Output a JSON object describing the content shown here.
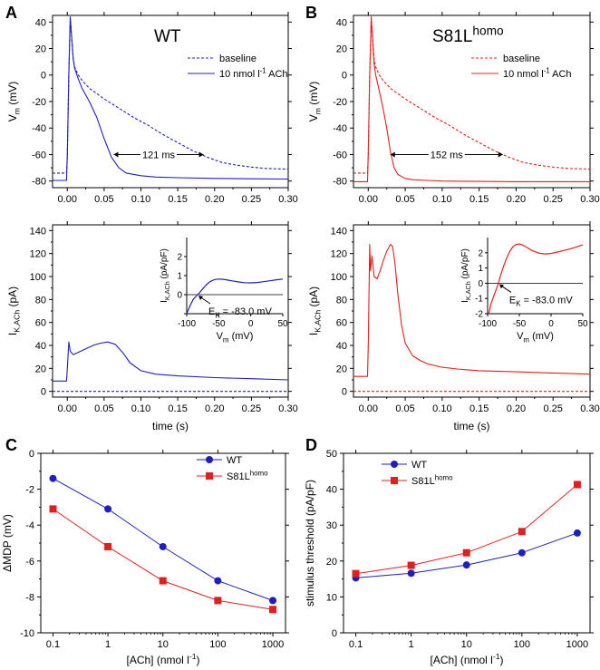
{
  "panels": [
    {
      "id": "A",
      "letter": "A",
      "title": "WT",
      "title_sup": "",
      "color": "#1f1fbf",
      "chart_data": {
        "type": "line",
        "xlim": [
          -0.02,
          0.3
        ],
        "ylim": [
          -85,
          45
        ],
        "xticks": [
          0.0,
          0.05,
          0.1,
          0.15,
          0.2,
          0.25,
          0.3
        ],
        "xtick_labels": [
          "0.00",
          "0.05",
          "0.10",
          "0.15",
          "0.20",
          "0.25",
          "0.30"
        ],
        "yticks": [
          -80,
          -60,
          -40,
          -20,
          0,
          20,
          40
        ],
        "ytick_labels": [
          "-80",
          "-60",
          "-40",
          "-20",
          "0",
          "20",
          "40"
        ],
        "ylabel_main": "V",
        "ylabel_sub": "m",
        "ylabel_unit": " (mV)",
        "series": [
          {
            "name": "baseline",
            "dashed": true,
            "x": [
              -0.02,
              -0.001,
              0.0,
              0.002,
              0.004,
              0.006,
              0.008,
              0.01,
              0.015,
              0.02,
              0.03,
              0.04,
              0.05,
              0.07,
              0.09,
              0.11,
              0.13,
              0.15,
              0.17,
              0.19,
              0.21,
              0.23,
              0.25,
              0.27,
              0.3
            ],
            "y": [
              -74,
              -74,
              -60,
              0,
              43,
              28,
              12,
              6,
              0,
              -4,
              -10,
              -14,
              -18,
              -25,
              -32,
              -38,
              -45,
              -51,
              -57,
              -62,
              -66,
              -68,
              -69.5,
              -70.5,
              -71
            ]
          },
          {
            "name": "10 nmol l",
            "dashed": false,
            "x": [
              -0.02,
              -0.001,
              0.0,
              0.002,
              0.004,
              0.006,
              0.008,
              0.01,
              0.015,
              0.02,
              0.03,
              0.04,
              0.05,
              0.06,
              0.07,
              0.08,
              0.1,
              0.12,
              0.15,
              0.2,
              0.25,
              0.3
            ],
            "y": [
              -79.5,
              -79.5,
              -60,
              0,
              44,
              28,
              12,
              5,
              -3,
              -10,
              -20,
              -32,
              -48,
              -62,
              -70,
              -74,
              -76,
              -77,
              -77.5,
              -78,
              -78.3,
              -78.5
            ]
          }
        ],
        "legend": [
          "baseline",
          "10 nmol l",
          "-1",
          " ACh"
        ],
        "annotation": "121 ms"
      }
    },
    {
      "id": "B",
      "letter": "B",
      "title": "S81L",
      "title_sup": "homo",
      "color": "#e02020",
      "chart_data": {
        "type": "line",
        "xlim": [
          -0.02,
          0.3
        ],
        "ylim": [
          -85,
          45
        ],
        "xticks": [
          0.0,
          0.05,
          0.1,
          0.15,
          0.2,
          0.25,
          0.3
        ],
        "xtick_labels": [
          "0.00",
          "0.05",
          "0.10",
          "0.15",
          "0.20",
          "0.25",
          "0.30"
        ],
        "yticks": [
          -80,
          -60,
          -40,
          -20,
          0,
          20,
          40
        ],
        "ytick_labels": [
          "-80",
          "-60",
          "-40",
          "-20",
          "0",
          "20",
          "40"
        ],
        "ylabel_main": "V",
        "ylabel_sub": "m",
        "ylabel_unit": " (mV)",
        "series": [
          {
            "name": "baseline",
            "dashed": true,
            "x": [
              -0.02,
              -0.001,
              0.0,
              0.002,
              0.004,
              0.006,
              0.008,
              0.01,
              0.015,
              0.02,
              0.03,
              0.04,
              0.05,
              0.07,
              0.09,
              0.11,
              0.13,
              0.15,
              0.17,
              0.19,
              0.21,
              0.23,
              0.25,
              0.27,
              0.3
            ],
            "y": [
              -74,
              -74,
              -60,
              0,
              43,
              28,
              12,
              6,
              0,
              -4,
              -10,
              -14,
              -18,
              -25,
              -32,
              -38,
              -45,
              -51,
              -57,
              -62,
              -66,
              -68,
              -69.5,
              -70.5,
              -71
            ]
          },
          {
            "name": "10 nmol l",
            "dashed": false,
            "x": [
              -0.02,
              -0.001,
              0.0,
              0.002,
              0.004,
              0.006,
              0.008,
              0.01,
              0.015,
              0.02,
              0.025,
              0.03,
              0.035,
              0.04,
              0.05,
              0.06,
              0.08,
              0.1,
              0.15,
              0.2,
              0.25,
              0.3
            ],
            "y": [
              -80.5,
              -80.5,
              -60,
              0,
              44,
              25,
              8,
              0,
              -12,
              -25,
              -40,
              -58,
              -70,
              -75,
              -78,
              -79,
              -79.5,
              -80,
              -80.3,
              -80.5,
              -80.5,
              -80.5
            ]
          }
        ],
        "legend": [
          "baseline",
          "10 nmol l",
          "-1",
          " ACh"
        ],
        "annotation": "152 ms"
      }
    },
    {
      "id": "A2",
      "color": "#1f1fbf",
      "chart_data": {
        "type": "line",
        "xlim": [
          -0.02,
          0.3
        ],
        "ylim": [
          -5,
          145
        ],
        "xticks": [
          0.0,
          0.05,
          0.1,
          0.15,
          0.2,
          0.25,
          0.3
        ],
        "xtick_labels": [
          "0.00",
          "0.05",
          "0.10",
          "0.15",
          "0.20",
          "0.25",
          "0.30"
        ],
        "yticks": [
          0,
          20,
          40,
          60,
          80,
          100,
          120,
          140
        ],
        "ytick_labels": [
          "0",
          "20",
          "40",
          "60",
          "80",
          "100",
          "120",
          "140"
        ],
        "xlabel": "time (s)",
        "ylabel_main": "I",
        "ylabel_sub": "K,ACh",
        "ylabel_unit": " (pA)",
        "series": [
          {
            "name": "baseline",
            "dashed": true,
            "x": [
              -0.02,
              0.3
            ],
            "y": [
              0,
              0
            ]
          },
          {
            "name": "ACh",
            "dashed": false,
            "x": [
              -0.02,
              -0.001,
              0.0,
              0.002,
              0.004,
              0.008,
              0.015,
              0.025,
              0.035,
              0.045,
              0.055,
              0.065,
              0.075,
              0.085,
              0.1,
              0.12,
              0.15,
              0.2,
              0.25,
              0.3
            ],
            "y": [
              9,
              9,
              20,
              43,
              35,
              32,
              34,
              37,
              40,
              42,
              43,
              41,
              34,
              25,
              18,
              15,
              13.5,
              12,
              11,
              10
            ]
          }
        ]
      },
      "inset": {
        "xlim": [
          -100,
          50
        ],
        "ylim": [
          -1,
          3
        ],
        "xticks": [
          -100,
          -50,
          0,
          50
        ],
        "xtick_labels": [
          "-100",
          "-50",
          "0",
          "50"
        ],
        "yticks": [
          -1,
          0,
          1,
          2
        ],
        "ytick_labels": [
          "",
          "0",
          "1",
          "2"
        ],
        "ylabel_main": "I",
        "ylabel_sub": "K,ACh",
        "ylabel_unit": " (pA/pF)",
        "xlabel_main": "V",
        "xlabel_sub": "m",
        "xlabel_unit": " (mV)",
        "ek_label": "E",
        "ek_sub": "K",
        "ek_value": " = -83.0 mV",
        "curve": {
          "x": [
            -100,
            -95,
            -90,
            -85,
            -83,
            -80,
            -75,
            -70,
            -65,
            -60,
            -55,
            -50,
            -45,
            -40,
            -30,
            -20,
            -10,
            0,
            10,
            20,
            30,
            40,
            50
          ],
          "y": [
            -1.0,
            -0.6,
            -0.25,
            -0.07,
            0,
            0.1,
            0.3,
            0.5,
            0.65,
            0.75,
            0.8,
            0.82,
            0.81,
            0.79,
            0.73,
            0.67,
            0.63,
            0.62,
            0.64,
            0.68,
            0.73,
            0.78,
            0.82
          ]
        }
      }
    },
    {
      "id": "B2",
      "color": "#e02020",
      "chart_data": {
        "type": "line",
        "xlim": [
          -0.02,
          0.3
        ],
        "ylim": [
          -5,
          145
        ],
        "xticks": [
          0.0,
          0.05,
          0.1,
          0.15,
          0.2,
          0.25,
          0.3
        ],
        "xtick_labels": [
          "0.00",
          "0.05",
          "0.10",
          "0.15",
          "0.20",
          "0.25",
          "0.30"
        ],
        "yticks": [
          0,
          20,
          40,
          60,
          80,
          100,
          120,
          140
        ],
        "ytick_labels": [
          "0",
          "20",
          "40",
          "60",
          "80",
          "100",
          "120",
          "140"
        ],
        "xlabel": "time (s)",
        "ylabel_main": "I",
        "ylabel_sub": "K,ACh",
        "ylabel_unit": " (pA)",
        "series": [
          {
            "name": "baseline",
            "dashed": true,
            "x": [
              -0.02,
              0.3
            ],
            "y": [
              0,
              0
            ]
          },
          {
            "name": "ACh",
            "dashed": false,
            "x": [
              -0.02,
              -0.001,
              0.0,
              0.002,
              0.003,
              0.005,
              0.008,
              0.012,
              0.016,
              0.02,
              0.025,
              0.03,
              0.033,
              0.036,
              0.04,
              0.045,
              0.05,
              0.06,
              0.07,
              0.08,
              0.1,
              0.12,
              0.15,
              0.2,
              0.25,
              0.3
            ],
            "y": [
              13,
              13,
              40,
              128,
              105,
              118,
              100,
              98,
              105,
              113,
              122,
              128,
              126,
              112,
              85,
              58,
              42,
              31,
              27,
              24,
              21,
              19.5,
              18,
              17,
              16,
              15
            ]
          }
        ]
      },
      "inset": {
        "xlim": [
          -100,
          50
        ],
        "ylim": [
          -2,
          3
        ],
        "xticks": [
          -100,
          -50,
          0,
          50
        ],
        "xtick_labels": [
          "-100",
          "-50",
          "0",
          "50"
        ],
        "yticks": [
          -2,
          -1,
          0,
          1,
          2
        ],
        "ytick_labels": [
          "-2",
          "-1",
          "0",
          "1",
          "2"
        ],
        "ylabel_main": "I",
        "ylabel_sub": "K,ACh",
        "ylabel_unit": " (pA/pF)",
        "xlabel_main": "V",
        "xlabel_sub": "m",
        "xlabel_unit": " (mV)",
        "ek_label": "E",
        "ek_sub": "K",
        "ek_value": " = -83.0 mV",
        "curve": {
          "x": [
            -98,
            -95,
            -90,
            -85,
            -83,
            -80,
            -75,
            -70,
            -65,
            -60,
            -55,
            -50,
            -45,
            -40,
            -30,
            -20,
            -10,
            0,
            10,
            20,
            30,
            40,
            50
          ],
          "y": [
            -2.0,
            -1.4,
            -0.8,
            -0.25,
            0,
            0.45,
            1.1,
            1.65,
            2.1,
            2.4,
            2.55,
            2.58,
            2.52,
            2.4,
            2.15,
            1.98,
            1.92,
            1.95,
            2.05,
            2.15,
            2.25,
            2.38,
            2.52
          ]
        }
      }
    },
    {
      "id": "C",
      "letter": "C",
      "chart_data": {
        "type": "line",
        "log_x": true,
        "xlim": [
          0.06,
          1700
        ],
        "ylim": [
          -10,
          0
        ],
        "xticks": [
          0.1,
          1,
          10,
          100,
          1000
        ],
        "xtick_labels": [
          "0.1",
          "1",
          "10",
          "100",
          "1000"
        ],
        "yticks": [
          -10,
          -8,
          -6,
          -4,
          -2,
          0
        ],
        "ytick_labels": [
          "-10",
          "-8",
          "-6",
          "-4",
          "-2",
          "0"
        ],
        "xlabel_main": "[ACh] (nmol l",
        "xlabel_sup": "-1",
        "xlabel_end": ")",
        "ylabel": "ΔMDP (mV)",
        "series": [
          {
            "name": "WT",
            "color": "#1f1fbf",
            "marker": "circle",
            "x": [
              0.1,
              1,
              10,
              100,
              1000
            ],
            "y": [
              -1.4,
              -3.1,
              -5.2,
              -7.1,
              -8.2
            ]
          },
          {
            "name": "S81L",
            "name_sup": "homo",
            "color": "#e02020",
            "marker": "square",
            "x": [
              0.1,
              1,
              10,
              100,
              1000
            ],
            "y": [
              -3.1,
              -5.2,
              -7.1,
              -8.2,
              -8.7
            ]
          }
        ],
        "legend_position": "top-right"
      }
    },
    {
      "id": "D",
      "letter": "D",
      "chart_data": {
        "type": "line",
        "log_x": true,
        "xlim": [
          0.06,
          1700
        ],
        "ylim": [
          0,
          50
        ],
        "xticks": [
          0.1,
          1,
          10,
          100,
          1000
        ],
        "xtick_labels": [
          "0.1",
          "1",
          "10",
          "100",
          "1000"
        ],
        "yticks": [
          0,
          10,
          20,
          30,
          40,
          50
        ],
        "ytick_labels": [
          "0",
          "10",
          "20",
          "30",
          "40",
          "50"
        ],
        "xlabel_main": "[ACh] (nmol l",
        "xlabel_sup": "-1",
        "xlabel_end": ")",
        "ylabel": "stimulus threshold (pA/pF)",
        "series": [
          {
            "name": "WT",
            "color": "#1f1fbf",
            "marker": "circle",
            "x": [
              0.1,
              1,
              10,
              100,
              1000
            ],
            "y": [
              15.3,
              16.6,
              18.9,
              22.3,
              27.8
            ]
          },
          {
            "name": "S81L",
            "name_sup": "homo",
            "color": "#e02020",
            "marker": "square",
            "x": [
              0.1,
              1,
              10,
              100,
              1000
            ],
            "y": [
              16.5,
              18.8,
              22.3,
              28.2,
              41.3
            ]
          }
        ],
        "legend_position": "top-left"
      }
    }
  ]
}
